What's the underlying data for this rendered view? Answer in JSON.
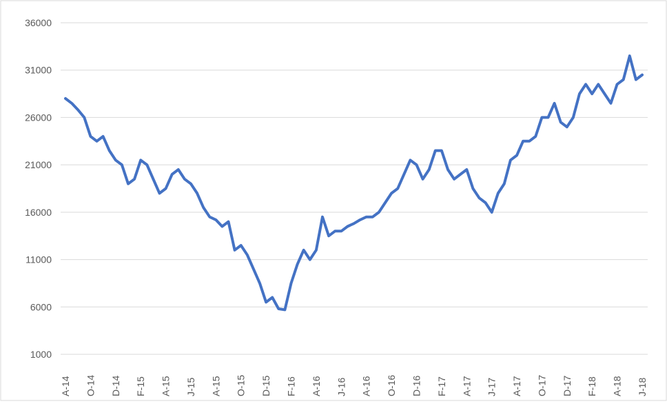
{
  "chart_data": {
    "type": "line",
    "categories": [
      "A-14",
      null,
      null,
      null,
      "O-14",
      null,
      null,
      null,
      "D-14",
      null,
      null,
      null,
      "F-15",
      null,
      null,
      null,
      "A-15",
      null,
      null,
      null,
      "J-15",
      null,
      null,
      null,
      "A-15",
      null,
      null,
      null,
      "O-15",
      null,
      null,
      null,
      "D-15",
      null,
      null,
      null,
      "F-16",
      null,
      null,
      null,
      "A-16",
      null,
      null,
      null,
      "J-16",
      null,
      null,
      null,
      "A-16",
      null,
      null,
      null,
      "O-16",
      null,
      null,
      null,
      "D-16",
      null,
      null,
      null,
      "F-17",
      null,
      null,
      null,
      "A-17",
      null,
      null,
      null,
      "J-17",
      null,
      null,
      null,
      "A-17",
      null,
      null,
      null,
      "O-17",
      null,
      null,
      null,
      "D-17",
      null,
      null,
      null,
      "F-18",
      null,
      null,
      null,
      "A-18",
      null,
      null,
      null,
      "J-18"
    ],
    "series": [
      {
        "color": "#4472c4",
        "values": [
          28000,
          27500,
          26800,
          26000,
          24000,
          23500,
          24000,
          22500,
          21500,
          21000,
          19000,
          19500,
          21500,
          21000,
          19500,
          18000,
          18500,
          20000,
          20500,
          19500,
          19000,
          18000,
          16500,
          15500,
          15200,
          14500,
          15000,
          12000,
          12500,
          11500,
          10000,
          8500,
          6500,
          7000,
          5800,
          5700,
          8500,
          10500,
          12000,
          11000,
          12000,
          15500,
          13500,
          14000,
          14000,
          14500,
          14800,
          15200,
          15500,
          15500,
          16000,
          17000,
          18000,
          18500,
          20000,
          21500,
          21000,
          19500,
          20500,
          22500,
          22500,
          20500,
          19500,
          20000,
          20500,
          18500,
          17500,
          17000,
          16000,
          18000,
          19000,
          21500,
          22000,
          23500,
          23500,
          24000,
          26000,
          26000,
          27500,
          25500,
          25000,
          26000,
          28500,
          29500,
          28500,
          29500,
          28500,
          27500,
          29500,
          30000,
          32500,
          30000,
          30500
        ]
      }
    ],
    "ylim": [
      1000,
      36000
    ],
    "yticks": [
      1000,
      6000,
      11000,
      16000,
      21000,
      26000,
      31000,
      36000
    ],
    "grid": true
  }
}
